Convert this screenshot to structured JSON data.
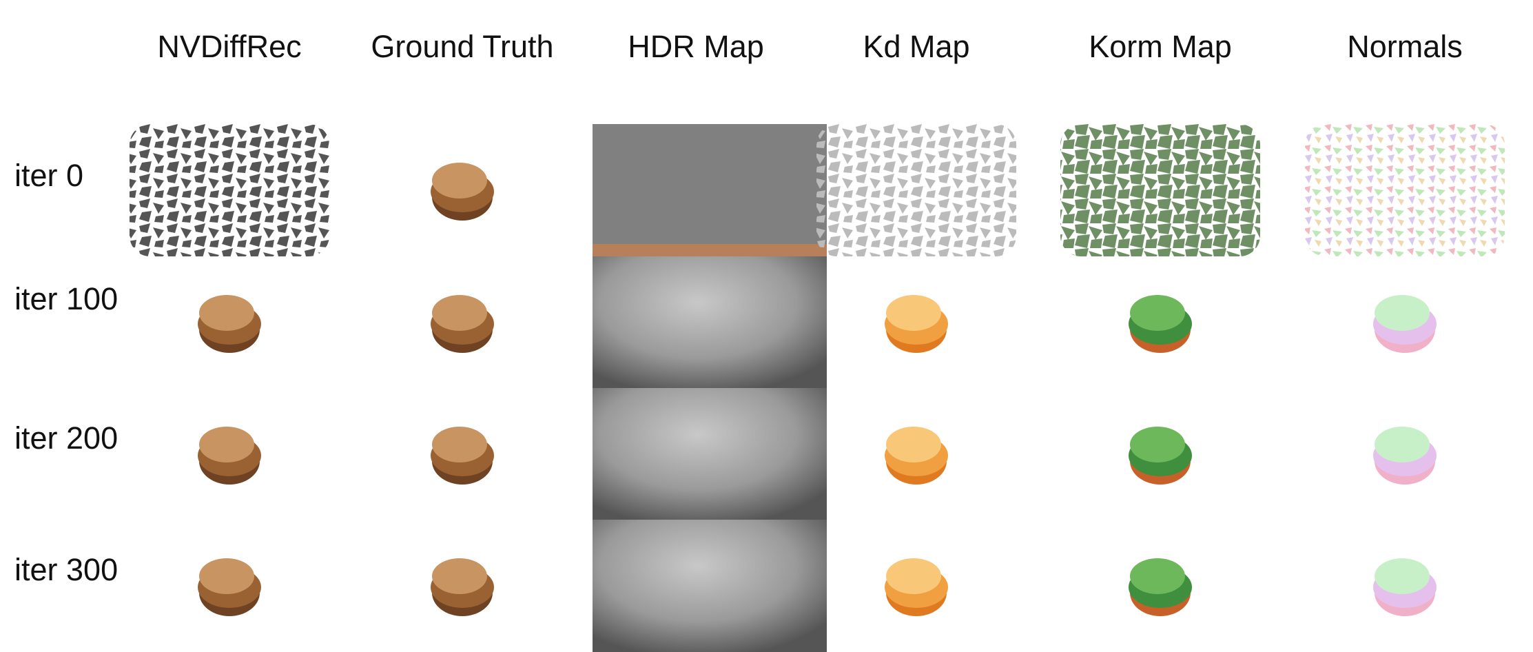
{
  "column_headers": [
    "NVDiffRec",
    "Ground Truth",
    "HDR Map",
    "Kd Map",
    "Korm Map",
    "Normals"
  ],
  "row_labels": [
    "iter 0",
    "iter 100",
    "iter 200",
    "iter 300"
  ]
}
